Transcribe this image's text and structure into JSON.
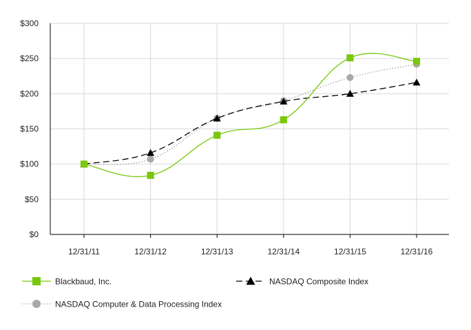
{
  "chart_data": {
    "type": "line",
    "title": "",
    "xlabel": "",
    "ylabel": "",
    "categories": [
      "12/31/11",
      "12/31/12",
      "12/31/13",
      "12/31/14",
      "12/31/15",
      "12/31/16"
    ],
    "ylim": [
      0,
      300
    ],
    "yticks": [
      0,
      50,
      100,
      150,
      200,
      250,
      300
    ],
    "ytick_labels": [
      "$0",
      "$50",
      "$100",
      "$150",
      "$200",
      "$250",
      "$300"
    ],
    "grid": "vertical lines at categories, horizontal lines at y ticks",
    "legend_position": "bottom",
    "series": [
      {
        "name": "Blackbaud, Inc.",
        "values": [
          100,
          84,
          141,
          163,
          251,
          246
        ],
        "color": "#7ac70c",
        "line_style": "solid",
        "marker": "square"
      },
      {
        "name": "NASDAQ Composite Index",
        "values": [
          100,
          116,
          165,
          189,
          200,
          216
        ],
        "color": "#000000",
        "line_style": "long-dash",
        "marker": "triangle"
      },
      {
        "name": "NASDAQ Computer & Data Processing Index",
        "values": [
          100,
          107,
          165,
          190,
          223,
          242
        ],
        "color": "#a9a9a9",
        "line_style": "dotted",
        "marker": "circle"
      }
    ]
  }
}
